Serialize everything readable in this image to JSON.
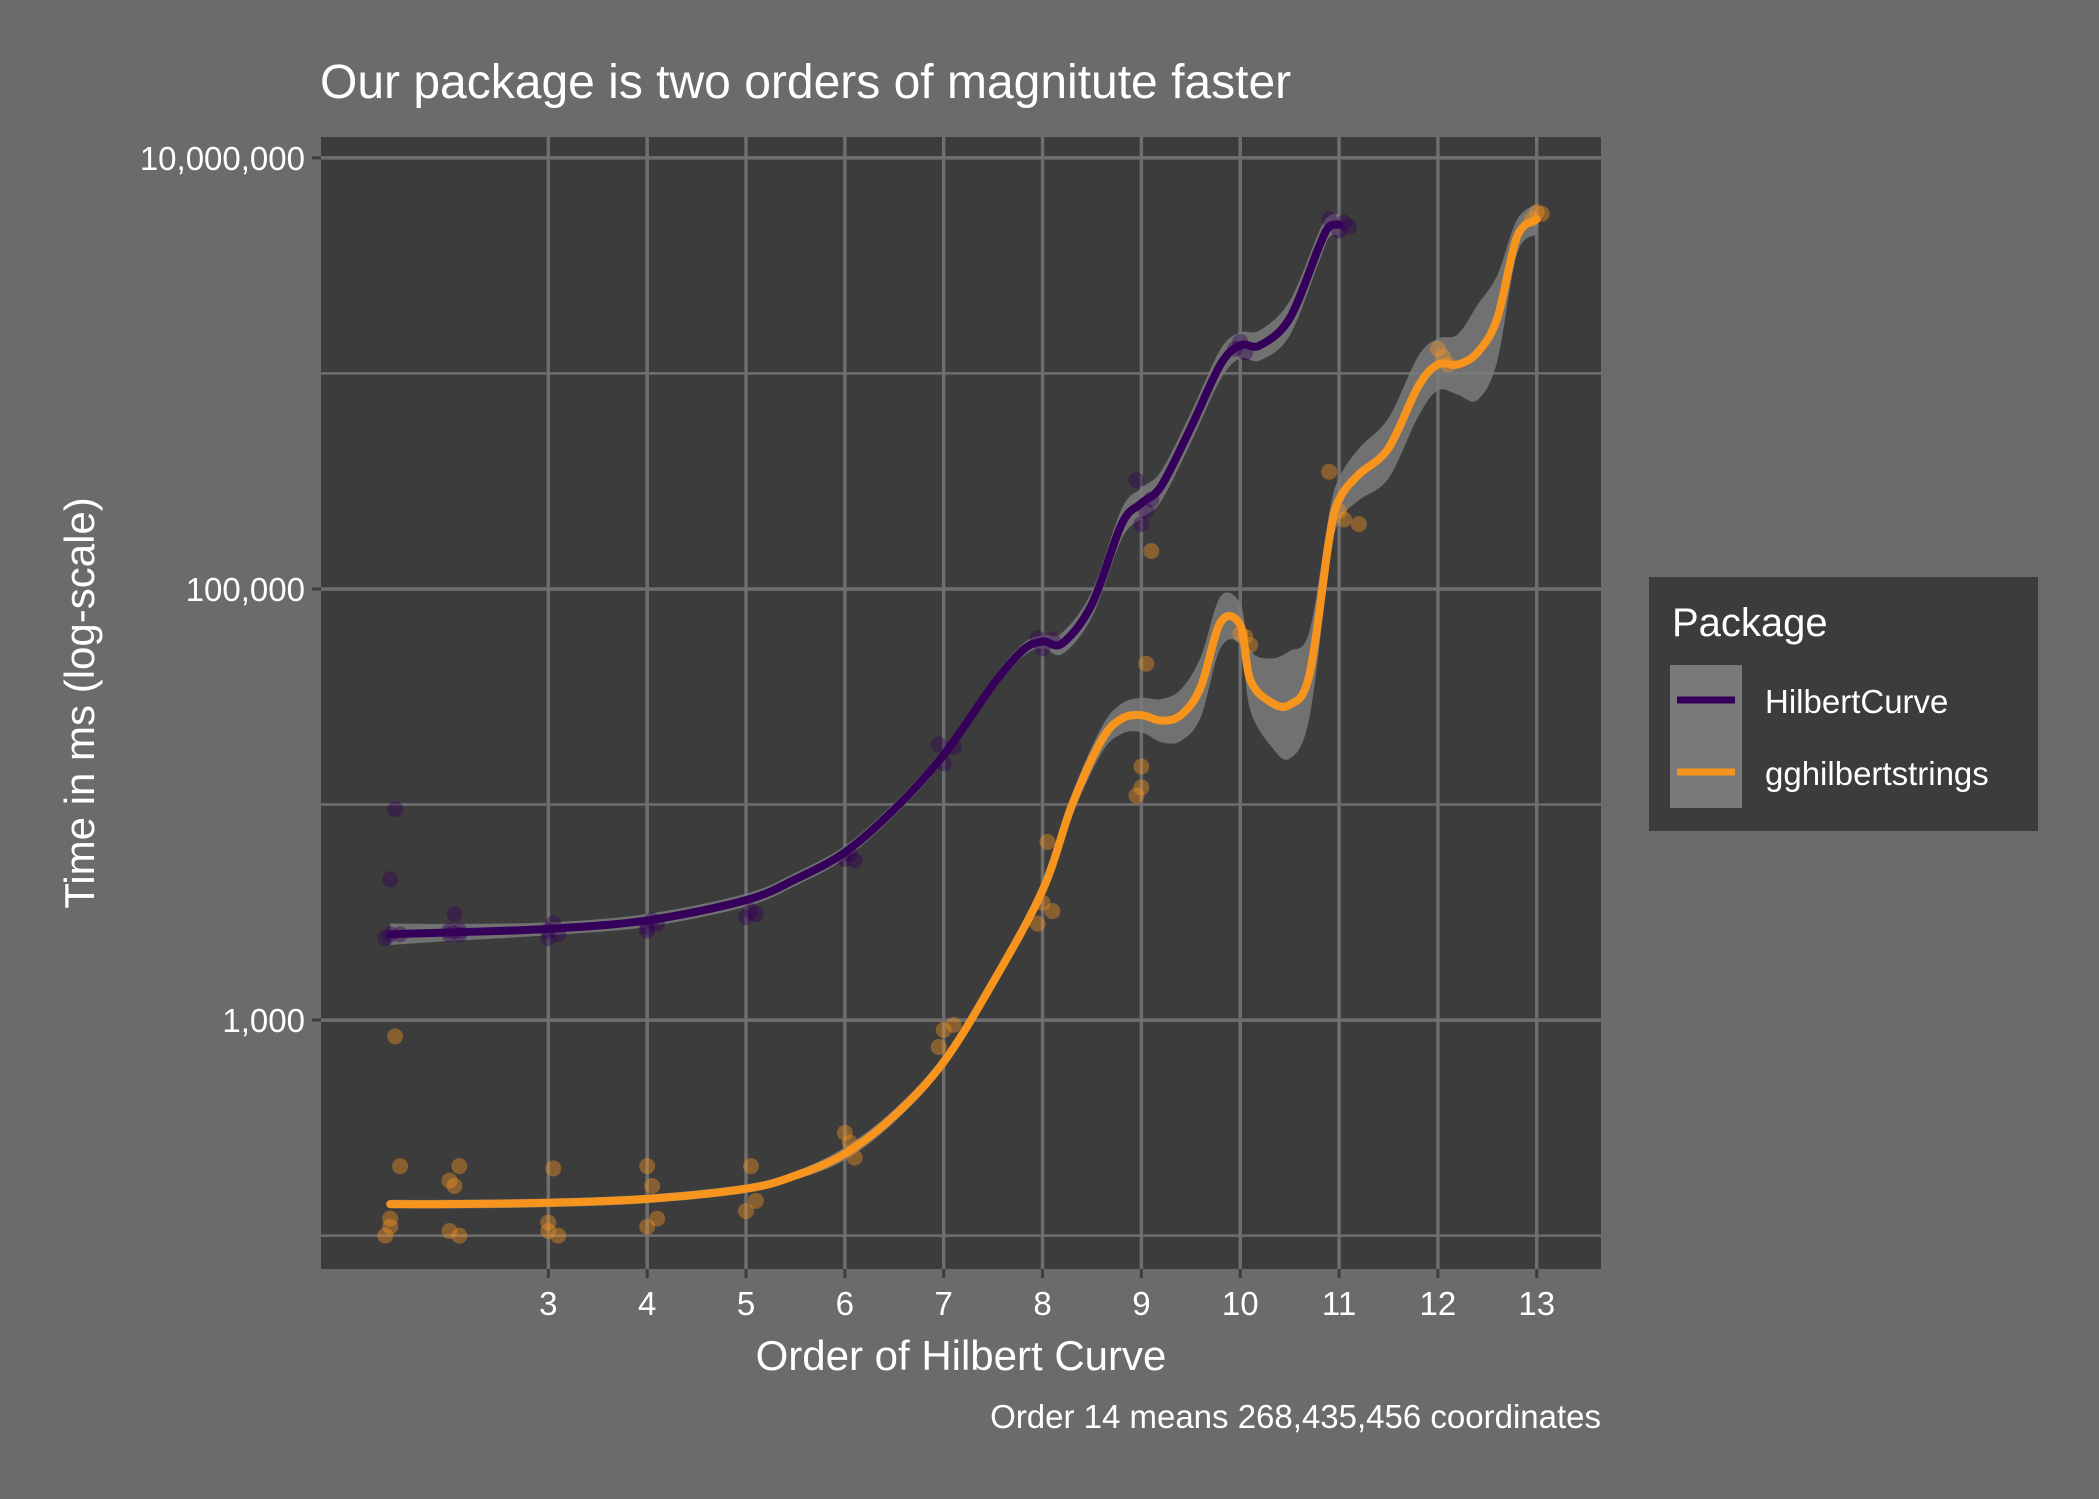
{
  "chart_data": {
    "type": "line",
    "title": "Our package is two orders of magnitute faster",
    "xlabel": "Order of Hilbert Curve",
    "ylabel": "Time in ms (log-scale)",
    "caption": "Order 14 means 268,435,456 coordinates",
    "y_scale": "log10",
    "xlim": [
      0.7,
      13.65
    ],
    "ylim": [
      70,
      12500000
    ],
    "x_ticks": [
      3,
      4,
      5,
      6,
      7,
      8,
      9,
      10,
      11,
      12,
      13
    ],
    "x_tick_labels": [
      "3",
      "4",
      "5",
      "6",
      "7",
      "8",
      "9",
      "10",
      "11",
      "12",
      "13"
    ],
    "y_ticks": [
      1000,
      100000,
      10000000
    ],
    "y_tick_labels": [
      "1,000",
      "100,000",
      "10,000,000"
    ],
    "y_minor_gridlines": [
      100,
      10000,
      1000000
    ],
    "grid": true,
    "legend": {
      "title": "Package",
      "position": "right",
      "entries": [
        "HilbertCurve",
        "gghilbertstrings"
      ]
    },
    "colors": {
      "background": "#6b6b6b",
      "panel": "#3c3c3c",
      "grid": "#6e6e6e",
      "text": "#ffffff",
      "legend_box": "#3c3c3c",
      "ribbon": "#7a7a7a"
    },
    "series": [
      {
        "name": "HilbertCurve",
        "color": "#35005a",
        "x": [
          1.4,
          2,
          3,
          4,
          5,
          5.5,
          6,
          6.5,
          7,
          7.5,
          7.8,
          8,
          8.2,
          8.5,
          8.8,
          9,
          9.2,
          9.5,
          9.8,
          10,
          10.2,
          10.5,
          10.8,
          10.9,
          11
        ],
        "y": [
          2500,
          2550,
          2650,
          2900,
          3600,
          4500,
          6000,
          9500,
          17000,
          36000,
          52000,
          57000,
          56000,
          85000,
          200000,
          250000,
          300000,
          560000,
          1100000,
          1350000,
          1350000,
          1800000,
          3900000,
          4800000,
          4900000
        ],
        "ribbon_halfwidth_log": [
          0.05,
          0.04,
          0.03,
          0.03,
          0.03,
          0.03,
          0.03,
          0.03,
          0.03,
          0.03,
          0.03,
          0.03,
          0.05,
          0.06,
          0.07,
          0.07,
          0.07,
          0.07,
          0.07,
          0.06,
          0.07,
          0.08,
          0.07,
          0.05,
          0.05
        ],
        "points": [
          [
            1.35,
            2400
          ],
          [
            1.4,
            4500
          ],
          [
            1.45,
            9500
          ],
          [
            1.4,
            2500
          ],
          [
            1.5,
            2500
          ],
          [
            2.0,
            2600
          ],
          [
            2.05,
            3100
          ],
          [
            2.1,
            2500
          ],
          [
            2.0,
            2500
          ],
          [
            2.1,
            2600
          ],
          [
            3.0,
            2400
          ],
          [
            3.05,
            2800
          ],
          [
            3.0,
            2600
          ],
          [
            3.1,
            2500
          ],
          [
            4.0,
            2700
          ],
          [
            4.05,
            2900
          ],
          [
            4.0,
            2600
          ],
          [
            4.1,
            2800
          ],
          [
            5.0,
            3000
          ],
          [
            5.05,
            3200
          ],
          [
            5.1,
            3100
          ],
          [
            6.0,
            5600
          ],
          [
            6.05,
            5900
          ],
          [
            6.1,
            5500
          ],
          [
            6.95,
            19000
          ],
          [
            7.0,
            15500
          ],
          [
            7.1,
            18500
          ],
          [
            7.95,
            59000
          ],
          [
            8.0,
            53000
          ],
          [
            8.1,
            58000
          ],
          [
            8.95,
            320000
          ],
          [
            9.0,
            200000
          ],
          [
            9.05,
            230000
          ],
          [
            9.1,
            260000
          ],
          [
            9.95,
            1300000
          ],
          [
            10.0,
            1400000
          ],
          [
            10.05,
            1250000
          ],
          [
            10.9,
            5200000
          ],
          [
            11.0,
            4600000
          ],
          [
            11.05,
            5000000
          ],
          [
            11.1,
            4800000
          ]
        ]
      },
      {
        "name": "gghilbertstrings",
        "color": "#f7941d",
        "x": [
          1.4,
          2,
          3,
          4,
          5,
          5.5,
          6,
          6.5,
          7,
          7.5,
          8,
          8.3,
          8.6,
          8.8,
          9,
          9.2,
          9.4,
          9.6,
          9.8,
          10,
          10.1,
          10.3,
          10.5,
          10.7,
          10.9,
          11,
          11.2,
          11.5,
          11.8,
          12,
          12.2,
          12.4,
          12.6,
          12.8,
          13
        ],
        "y": [
          140,
          140,
          142,
          148,
          165,
          190,
          240,
          360,
          640,
          1500,
          4000,
          10000,
          20000,
          25000,
          26000,
          24500,
          26000,
          35000,
          70000,
          68000,
          38000,
          30000,
          29000,
          40000,
          170000,
          260000,
          340000,
          450000,
          870000,
          1100000,
          1100000,
          1250000,
          1800000,
          4300000,
          5200000
        ],
        "ribbon_halfwidth_log": [
          0.02,
          0.02,
          0.02,
          0.02,
          0.02,
          0.02,
          0.03,
          0.03,
          0.03,
          0.03,
          0.03,
          0.05,
          0.06,
          0.07,
          0.08,
          0.1,
          0.12,
          0.14,
          0.12,
          0.1,
          0.14,
          0.2,
          0.25,
          0.2,
          0.12,
          0.1,
          0.12,
          0.14,
          0.14,
          0.12,
          0.14,
          0.22,
          0.2,
          0.08,
          0.07
        ],
        "points": [
          [
            1.35,
            100
          ],
          [
            1.4,
            120
          ],
          [
            1.45,
            840
          ],
          [
            1.5,
            210
          ],
          [
            1.4,
            110
          ],
          [
            2.0,
            180
          ],
          [
            2.05,
            170
          ],
          [
            2.1,
            210
          ],
          [
            2.0,
            105
          ],
          [
            2.1,
            100
          ],
          [
            3.0,
            115
          ],
          [
            3.05,
            205
          ],
          [
            3.0,
            105
          ],
          [
            3.1,
            100
          ],
          [
            4.0,
            210
          ],
          [
            4.05,
            170
          ],
          [
            4.0,
            110
          ],
          [
            4.1,
            120
          ],
          [
            5.0,
            130
          ],
          [
            5.05,
            210
          ],
          [
            5.1,
            145
          ],
          [
            6.0,
            300
          ],
          [
            6.05,
            270
          ],
          [
            6.1,
            230
          ],
          [
            6.95,
            750
          ],
          [
            7.0,
            900
          ],
          [
            7.1,
            950
          ],
          [
            7.95,
            2800
          ],
          [
            8.0,
            3500
          ],
          [
            8.05,
            6700
          ],
          [
            8.1,
            3200
          ],
          [
            8.95,
            11000
          ],
          [
            9.0,
            15000
          ],
          [
            9.05,
            45000
          ],
          [
            9.1,
            150000
          ],
          [
            9.0,
            12000
          ],
          [
            10.0,
            62000
          ],
          [
            10.05,
            60000
          ],
          [
            10.1,
            55000
          ],
          [
            10.9,
            350000
          ],
          [
            11.0,
            230000
          ],
          [
            11.05,
            210000
          ],
          [
            11.2,
            200000
          ],
          [
            12.0,
            1300000
          ],
          [
            12.05,
            1200000
          ],
          [
            12.1,
            1100000
          ],
          [
            12.95,
            5200000
          ],
          [
            13.0,
            5600000
          ],
          [
            13.05,
            5500000
          ]
        ]
      }
    ]
  }
}
